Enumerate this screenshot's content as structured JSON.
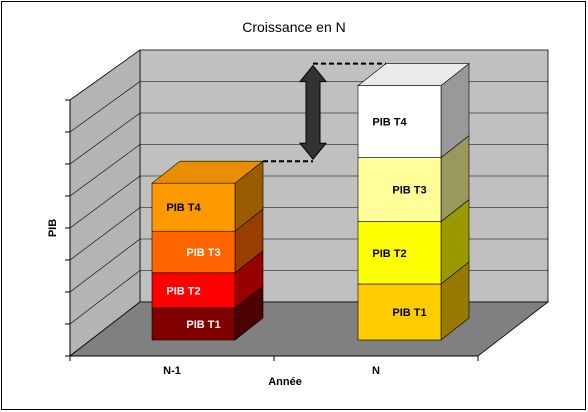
{
  "chart_data": {
    "type": "bar",
    "stacked": true,
    "three_d": true,
    "title": "Croissance en N",
    "xlabel": "Année",
    "ylabel": "PIB",
    "categories": [
      "N-1",
      "N"
    ],
    "ylim": [
      0,
      8
    ],
    "y_tick_labels_shown": false,
    "grid": true,
    "series": [
      {
        "name": "PIB T1",
        "values": [
          1.0,
          1.75
        ],
        "colors": [
          "#800000",
          "#ffcc00"
        ],
        "label_colors": [
          "#ffffff",
          "#000000"
        ]
      },
      {
        "name": "PIB T2",
        "values": [
          1.1,
          1.95
        ],
        "colors": [
          "#ff0000",
          "#ffff00"
        ],
        "label_colors": [
          "#ffffff",
          "#000000"
        ]
      },
      {
        "name": "PIB T3",
        "values": [
          1.3,
          2.0
        ],
        "colors": [
          "#ff6600",
          "#ffff99"
        ],
        "label_colors": [
          "#ffffff",
          "#000000"
        ]
      },
      {
        "name": "PIB T4",
        "values": [
          1.5,
          2.25
        ],
        "colors": [
          "#ff9900",
          "#ffffff"
        ],
        "label_colors": [
          "#000000",
          "#000000"
        ]
      }
    ]
  }
}
